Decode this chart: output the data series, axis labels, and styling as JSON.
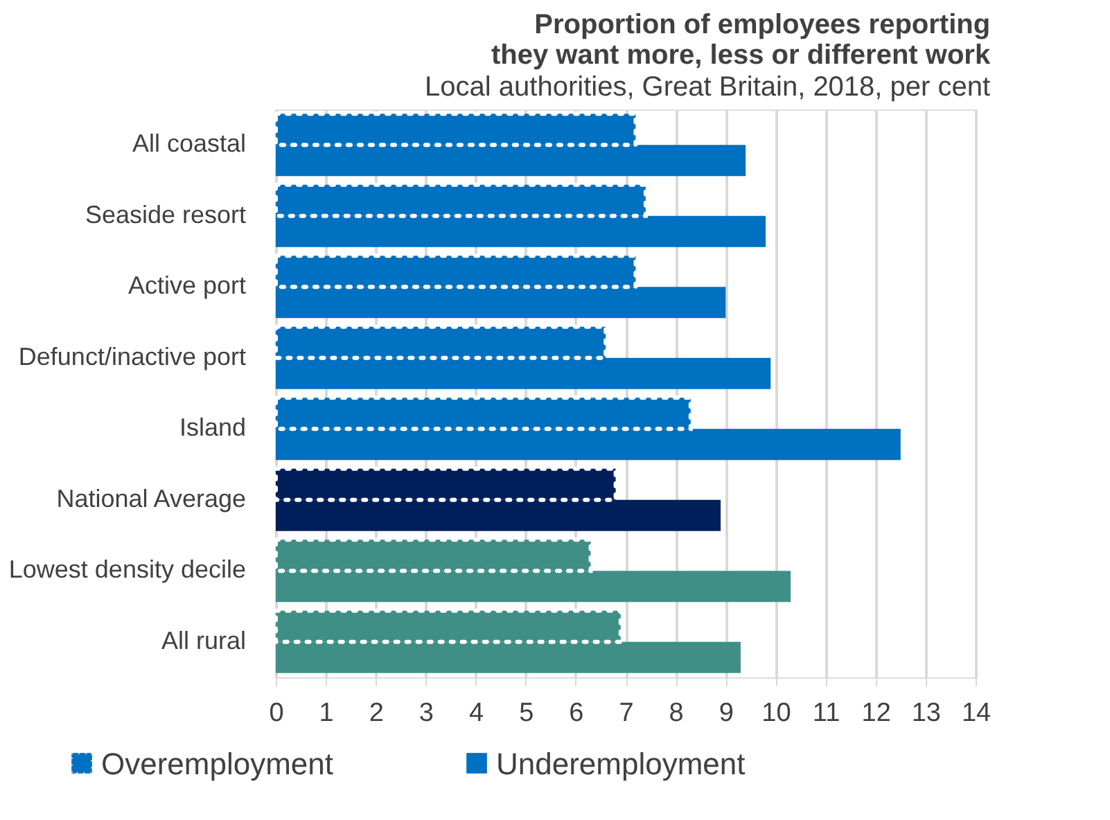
{
  "chart_data": {
    "type": "bar",
    "orientation": "horizontal",
    "title": [
      "Proportion of employees reporting",
      "they want more, less or different work"
    ],
    "subtitle": "Local authorities, Great Britain, 2018, per cent",
    "categories": [
      "All coastal",
      "Seaside resort",
      "Active port",
      "Defunct/inactive port",
      "Island",
      "National Average",
      "Lowest density decile",
      "All rural"
    ],
    "series": [
      {
        "name": "Overemployment",
        "color": "#0070c0",
        "colors": [
          "#0070c0",
          "#0070c0",
          "#0070c0",
          "#0070c0",
          "#0070c0",
          "#001f5b",
          "#3f8f87",
          "#3f8f87"
        ],
        "values": [
          7.2,
          7.4,
          7.2,
          6.6,
          8.3,
          6.8,
          6.3,
          6.9
        ]
      },
      {
        "name": "Underemployment",
        "color": "#0070c0",
        "colors": [
          "#0070c0",
          "#0070c0",
          "#0070c0",
          "#0070c0",
          "#0070c0",
          "#001f5b",
          "#3f8f87",
          "#3f8f87"
        ],
        "values": [
          9.4,
          9.8,
          9.0,
          9.9,
          12.5,
          8.9,
          10.3,
          9.3
        ]
      }
    ],
    "xlim": [
      0,
      14
    ],
    "xticks": [
      0,
      1,
      2,
      3,
      4,
      5,
      6,
      7,
      8,
      9,
      10,
      11,
      12,
      13,
      14
    ],
    "grid": "x",
    "legend": "bottom"
  }
}
